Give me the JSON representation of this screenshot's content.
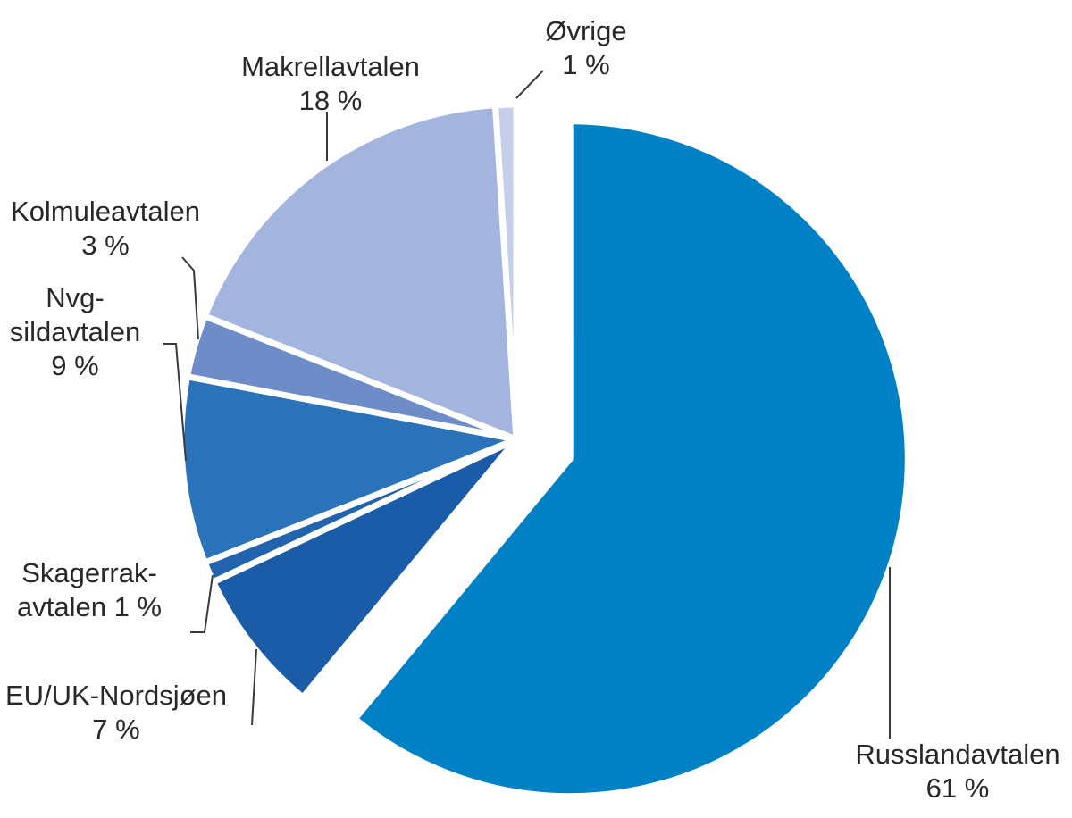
{
  "chart_data": {
    "type": "pie",
    "title": "",
    "unit": "%",
    "start_angle_deg": 0,
    "direction": "clockwise",
    "legend_position": "outside-labels",
    "slices": [
      {
        "label": "Russlandavtalen",
        "value": 61,
        "color": "#0080C5",
        "exploded": true
      },
      {
        "label": "EU/UK-Nordsjøen",
        "value": 7,
        "color": "#1A5CA8",
        "exploded": false
      },
      {
        "label": "Skagerrak-avtalen",
        "value": 1,
        "color": "#2263AE",
        "exploded": false
      },
      {
        "label": "Nvg-sildavtalen",
        "value": 9,
        "color": "#2A72B9",
        "exploded": false
      },
      {
        "label": "Kolmuleavtalen",
        "value": 3,
        "color": "#6E8DC8",
        "exploded": false
      },
      {
        "label": "Makrellavtalen",
        "value": 18,
        "color": "#A3B5DE",
        "exploded": false
      },
      {
        "label": "Øvrige",
        "value": 1,
        "color": "#C5CFEA",
        "exploded": false
      }
    ]
  },
  "labels": {
    "ovrige": {
      "lines": [
        "Øvrige",
        "1 %"
      ]
    },
    "makrell": {
      "lines": [
        "Makrellavtalen",
        "18 %"
      ]
    },
    "kolmule": {
      "lines": [
        "Kolmuleavtalen",
        "3 %"
      ]
    },
    "nvg": {
      "lines": [
        "Nvg-",
        "sildavtalen",
        "9 %"
      ]
    },
    "skagerrak": {
      "lines": [
        "Skagerrak-",
        "avtalen 1 %"
      ]
    },
    "euuk": {
      "lines": [
        "EU/UK-Nordsjøen",
        "7 %"
      ]
    },
    "russland": {
      "lines": [
        "Russlandavtalen",
        "61 %"
      ]
    }
  }
}
